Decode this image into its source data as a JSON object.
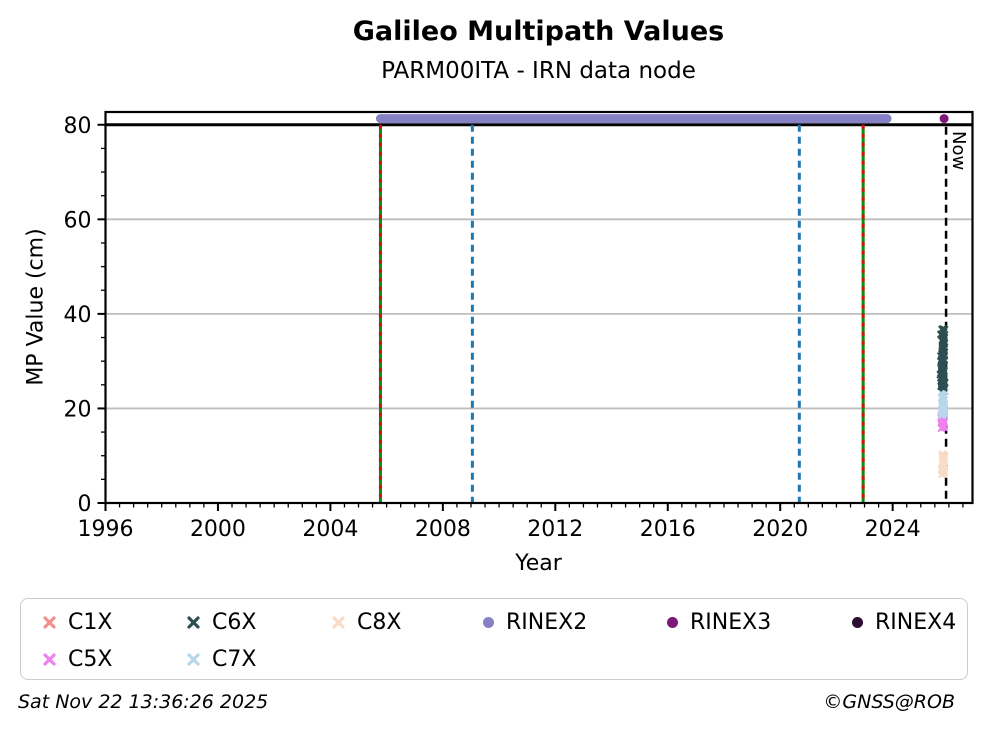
{
  "header": {
    "title": "Galileo Multipath Values",
    "subtitle": "PARM00ITA - IRN data node"
  },
  "footer": {
    "timestamp": "Sat Nov 22 13:36:26 2025",
    "credit": "©GNSS@ROB"
  },
  "chart_data": {
    "type": "scatter",
    "title": "Galileo Multipath Values",
    "subtitle": "PARM00ITA - IRN data node",
    "xlabel": "Year",
    "ylabel": "MP Value (cm)",
    "xlim": [
      1996,
      2026.84
    ],
    "ylim": [
      0,
      82.7
    ],
    "x_ticks": [
      1996,
      2000,
      2004,
      2008,
      2012,
      2016,
      2020,
      2024
    ],
    "y_ticks": [
      0,
      20,
      40,
      60,
      80
    ],
    "x_minor_step": 0.5,
    "y_minor_step": 5,
    "grid": {
      "horizontal_at": [
        20,
        40,
        60
      ],
      "vertical": false,
      "color": "#bebebe"
    },
    "threshold_line": {
      "y": 80,
      "color": "#000000",
      "style": "solid"
    },
    "now_line": {
      "x": 2025.9,
      "label": "Now",
      "color": "#000000",
      "style": "dashed"
    },
    "event_lines": [
      {
        "x": 2005.78,
        "kind": "green-with-red-dashes",
        "color_solid": "#0e8a0e",
        "color_dash": "#d01111"
      },
      {
        "x": 2022.95,
        "kind": "green-with-red-dashes",
        "color_solid": "#0e8a0e",
        "color_dash": "#d01111"
      },
      {
        "x": 2009.05,
        "kind": "blue-dashed",
        "color_dash": "#1f77b4"
      },
      {
        "x": 2020.68,
        "kind": "blue-dashed",
        "color_dash": "#1f77b4"
      }
    ],
    "rinex2_band": {
      "name": "RINEX2",
      "x_start": 2005.78,
      "x_end": 2023.8,
      "y": 81.3,
      "color": "#8581c4"
    },
    "rinex3_point": {
      "name": "RINEX3",
      "x": 2025.83,
      "y": 81.3,
      "color": "#7d1878"
    },
    "series": [
      {
        "name": "C8X",
        "marker": "x",
        "color": "#f9dcc7",
        "cluster": {
          "x_center": 2025.8,
          "x_spread": 0.07,
          "y_ranges": [
            [
              5.9,
              8.0
            ],
            [
              8.6,
              11.0
            ]
          ],
          "n": 30
        }
      },
      {
        "name": "C5X",
        "marker": "x",
        "color": "#ee82ee",
        "cluster": {
          "x_center": 2025.79,
          "x_spread": 0.08,
          "y_ranges": [
            [
              15.4,
              19.9
            ]
          ],
          "n": 38
        }
      },
      {
        "name": "C7X",
        "marker": "x",
        "color": "#b8d7ea",
        "cluster": {
          "x_center": 2025.79,
          "x_spread": 0.08,
          "y_ranges": [
            [
              18.4,
              25.5
            ]
          ],
          "n": 55
        }
      },
      {
        "name": "C6X",
        "marker": "x",
        "color": "#2e4f51",
        "cluster": {
          "x_center": 2025.78,
          "x_spread": 0.1,
          "y_ranges": [
            [
              24.3,
              37.0
            ]
          ],
          "n": 95,
          "bias_low": true
        }
      },
      {
        "name": "C1X",
        "marker": "x",
        "color": "#f1908c",
        "cluster": {
          "x_center": 2025.8,
          "x_spread": 0,
          "y_ranges": [],
          "n": 0
        }
      }
    ],
    "legend_position": "bottom"
  },
  "legend": {
    "items": [
      {
        "id": "c1x",
        "label": "C1X",
        "marker": "x",
        "color": "#f1908c"
      },
      {
        "id": "c6x",
        "label": "C6X",
        "marker": "x",
        "color": "#2e4f51"
      },
      {
        "id": "c8x",
        "label": "C8X",
        "marker": "x",
        "color": "#f9dcc7"
      },
      {
        "id": "rinex2",
        "label": "RINEX2",
        "marker": "dot",
        "color": "#8581c4"
      },
      {
        "id": "rinex3",
        "label": "RINEX3",
        "marker": "dot",
        "color": "#7d1878"
      },
      {
        "id": "rinex4",
        "label": "RINEX4",
        "marker": "dot",
        "color": "#2c0e34"
      },
      {
        "id": "c5x",
        "label": "C5X",
        "marker": "x",
        "color": "#ee82ee"
      },
      {
        "id": "c7x",
        "label": "C7X",
        "marker": "x",
        "color": "#b8d7ea"
      }
    ]
  }
}
